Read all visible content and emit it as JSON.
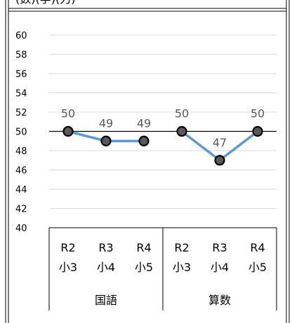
{
  "header_fragment": "(数)(学)(力)",
  "chart_data": {
    "type": "line",
    "title": "",
    "xlabel": "",
    "ylabel": "",
    "ylim": [
      40,
      60
    ],
    "ytick_step": 2,
    "yticks": [
      "40",
      "42",
      "44",
      "46",
      "48",
      "50",
      "52",
      "54",
      "56",
      "58",
      "60"
    ],
    "grid": true,
    "reference_line": 50,
    "groups": [
      {
        "name": "国語",
        "categories": [
          {
            "year": "R2",
            "grade": "小3"
          },
          {
            "year": "R3",
            "grade": "小4"
          },
          {
            "year": "R4",
            "grade": "小5"
          }
        ],
        "values": [
          50,
          49,
          49
        ]
      },
      {
        "name": "算数",
        "categories": [
          {
            "year": "R2",
            "grade": "小3"
          },
          {
            "year": "R3",
            "grade": "小4"
          },
          {
            "year": "R4",
            "grade": "小5"
          }
        ],
        "values": [
          50,
          47,
          50
        ]
      }
    ],
    "series_color": "#5b9bd5",
    "marker_fill": "#595959",
    "marker_stroke": "#000000",
    "grid_color": "#d9d9d9"
  }
}
